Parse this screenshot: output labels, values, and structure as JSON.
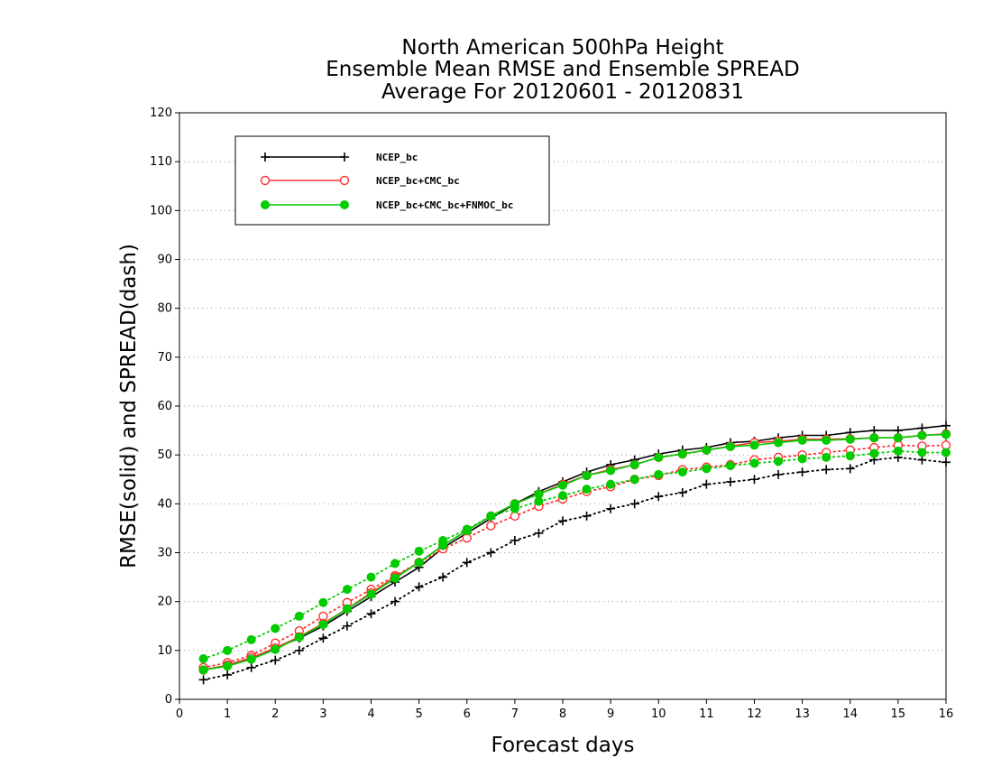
{
  "chart_data": {
    "type": "line",
    "title": [
      "North American 500hPa Height",
      "Ensemble Mean RMSE and Ensemble SPREAD",
      "Average For 20120601 - 20120831"
    ],
    "xlabel": "Forecast days",
    "ylabel": "RMSE(solid) and SPREAD(dash)",
    "xlim": [
      0,
      16
    ],
    "ylim": [
      0,
      120
    ],
    "xticks": [
      0,
      1,
      2,
      3,
      4,
      5,
      6,
      7,
      8,
      9,
      10,
      11,
      12,
      13,
      14,
      15,
      16
    ],
    "yticks": [
      0,
      10,
      20,
      30,
      40,
      50,
      60,
      70,
      80,
      90,
      100,
      110,
      120
    ],
    "grid": "horizontal dotted",
    "legend_position": "top-left",
    "x": [
      0.5,
      1,
      1.5,
      2,
      2.5,
      3,
      3.5,
      4,
      4.5,
      5,
      5.5,
      6,
      6.5,
      7,
      7.5,
      8,
      8.5,
      9,
      9.5,
      10,
      10.5,
      11,
      11.5,
      12,
      12.5,
      13,
      13.5,
      14,
      14.5,
      15,
      15.5,
      16
    ],
    "series": [
      {
        "name": "NCEP_bc",
        "color": "#000000",
        "marker": "plus",
        "rmse": [
          6,
          7,
          8.5,
          10.5,
          12.5,
          15,
          18,
          21,
          24,
          27,
          31,
          34,
          37,
          40,
          42.5,
          44.5,
          46.5,
          48,
          49,
          50.2,
          51,
          51.5,
          52.5,
          52.8,
          53.5,
          54,
          54,
          54.6,
          55,
          55,
          55.5,
          56
        ],
        "spread": [
          4,
          5,
          6.5,
          8,
          10,
          12.5,
          15,
          17.5,
          20,
          23,
          25,
          28,
          30,
          32.5,
          34,
          36.5,
          37.5,
          39,
          40,
          41.5,
          42.3,
          44,
          44.5,
          45,
          46,
          46.5,
          47,
          47.2,
          49,
          49.5,
          49,
          48.5
        ]
      },
      {
        "name": "NCEP_bc+CMC_bc",
        "color": "#ff3030",
        "marker": "open-circle",
        "rmse": [
          6,
          7,
          8.5,
          10.5,
          12.8,
          15.5,
          18.5,
          21.8,
          25,
          28,
          31.5,
          34.5,
          37.5,
          40,
          42,
          44,
          45.8,
          47,
          48,
          49.5,
          50.2,
          51,
          51.8,
          52.5,
          52.8,
          53.2,
          53.2,
          53.3,
          53.5,
          53.5,
          54,
          54.3
        ],
        "spread": [
          6.5,
          7.5,
          9,
          11.5,
          14,
          17,
          19.8,
          22.5,
          25.3,
          28,
          30.8,
          33,
          35.5,
          37.5,
          39.5,
          41,
          42.5,
          43.5,
          45,
          45.8,
          47,
          47.5,
          48,
          49,
          49.5,
          50,
          50.5,
          51,
          51.5,
          52,
          51.8,
          52
        ]
      },
      {
        "name": "NCEP_bc+CMC_bc+FNMOC_bc",
        "color": "#00cc00",
        "marker": "filled-circle",
        "rmse": [
          6,
          6.8,
          8.2,
          10.2,
          12.7,
          15.3,
          18.5,
          21.5,
          24.8,
          28,
          31.5,
          34.5,
          37.5,
          40,
          42,
          43.8,
          45.8,
          46.8,
          48,
          49.5,
          50.2,
          51,
          51.7,
          52,
          52.5,
          53,
          53,
          53.2,
          53.5,
          53.5,
          54,
          54.2
        ],
        "spread": [
          8.3,
          10,
          12.2,
          14.5,
          17,
          19.8,
          22.5,
          25,
          27.8,
          30.3,
          32.5,
          34.8,
          37.5,
          39,
          40.5,
          41.7,
          43,
          44,
          45,
          46,
          46.5,
          47.2,
          47.8,
          48.3,
          48.7,
          49.2,
          49.5,
          49.8,
          50.3,
          50.8,
          50.5,
          50.5
        ]
      }
    ]
  }
}
